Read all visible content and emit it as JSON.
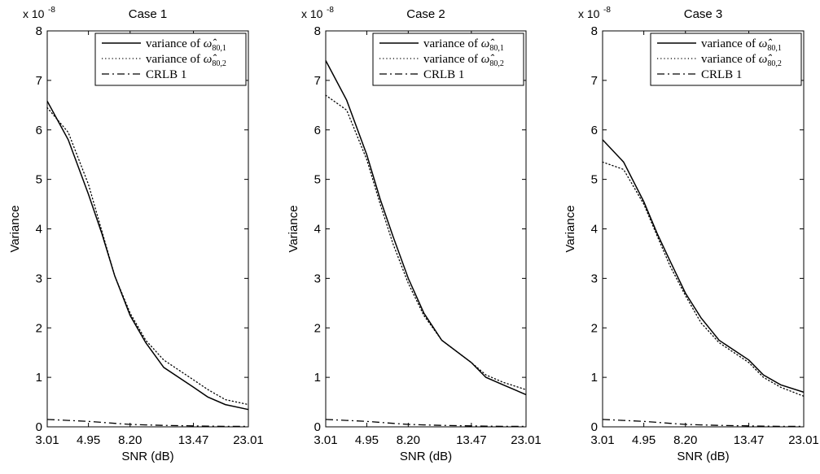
{
  "chart_data": [
    {
      "type": "line",
      "title": "Case 1",
      "xlabel": "SNR (dB)",
      "ylabel": "Variance",
      "y_multiplier": "x 10",
      "y_exponent": "-8",
      "xlim": [
        3.01,
        23.01
      ],
      "ylim": [
        0,
        8
      ],
      "xtick_labels": [
        "3.01",
        "4.95",
        "8.20",
        "13.47",
        "23.01"
      ],
      "ytick_labels": [
        "0",
        "1",
        "2",
        "3",
        "4",
        "5",
        "6",
        "7",
        "8"
      ],
      "x": [
        3.01,
        4.0,
        4.95,
        6.0,
        7.0,
        8.2,
        9.5,
        11.0,
        13.47,
        16.0,
        19.0,
        23.01
      ],
      "legend": {
        "position": "top-right",
        "entries": [
          {
            "text": "variance of ",
            "math": "ω̂",
            "sub": "80,1",
            "style": "solid"
          },
          {
            "text": "variance of ",
            "math": "ω̂",
            "sub": "80,2",
            "style": "dotted"
          },
          {
            "text": "CRLB 1",
            "math": "",
            "sub": "",
            "style": "dashdot"
          }
        ]
      },
      "series": [
        {
          "style": "solid",
          "values": [
            6.58,
            5.8,
            4.7,
            3.9,
            3.05,
            2.25,
            1.7,
            1.2,
            0.8,
            0.6,
            0.45,
            0.35
          ]
        },
        {
          "style": "dotted",
          "values": [
            6.45,
            5.95,
            4.9,
            3.95,
            3.05,
            2.3,
            1.75,
            1.35,
            0.95,
            0.75,
            0.55,
            0.45
          ]
        },
        {
          "style": "dashdot",
          "values": [
            0.15,
            0.13,
            0.11,
            0.09,
            0.07,
            0.05,
            0.04,
            0.03,
            0.02,
            0.015,
            0.01,
            0.01
          ]
        }
      ],
      "grid": false
    },
    {
      "type": "line",
      "title": "Case 2",
      "xlabel": "SNR (dB)",
      "ylabel": "Variance",
      "y_multiplier": "x 10",
      "y_exponent": "-8",
      "xlim": [
        3.01,
        23.01
      ],
      "ylim": [
        0,
        8
      ],
      "xtick_labels": [
        "3.01",
        "4.95",
        "8.20",
        "13.47",
        "23.01"
      ],
      "ytick_labels": [
        "0",
        "1",
        "2",
        "3",
        "4",
        "5",
        "6",
        "7",
        "8"
      ],
      "x": [
        3.01,
        4.0,
        4.95,
        6.0,
        7.0,
        8.2,
        9.5,
        11.0,
        13.47,
        16.0,
        19.0,
        23.01
      ],
      "legend": {
        "position": "top-right",
        "entries": [
          {
            "text": "variance of ",
            "math": "ω̂",
            "sub": "80,1",
            "style": "solid"
          },
          {
            "text": "variance of ",
            "math": "ω̂",
            "sub": "80,2",
            "style": "dotted"
          },
          {
            "text": "CRLB 1",
            "math": "",
            "sub": "",
            "style": "dashdot"
          }
        ]
      },
      "series": [
        {
          "style": "solid",
          "values": [
            7.4,
            6.6,
            5.5,
            4.6,
            3.85,
            3.0,
            2.3,
            1.75,
            1.3,
            1.0,
            0.85,
            0.65
          ]
        },
        {
          "style": "dotted",
          "values": [
            6.7,
            6.4,
            5.4,
            4.5,
            3.7,
            2.9,
            2.25,
            1.75,
            1.3,
            1.05,
            0.9,
            0.75
          ]
        },
        {
          "style": "dashdot",
          "values": [
            0.15,
            0.13,
            0.11,
            0.09,
            0.07,
            0.05,
            0.04,
            0.03,
            0.02,
            0.015,
            0.01,
            0.01
          ]
        }
      ],
      "grid": false
    },
    {
      "type": "line",
      "title": "Case 3",
      "xlabel": "SNR (dB)",
      "ylabel": "Variance",
      "y_multiplier": "x 10",
      "y_exponent": "-8",
      "xlim": [
        3.01,
        23.01
      ],
      "ylim": [
        0,
        8
      ],
      "xtick_labels": [
        "3.01",
        "4.95",
        "8.20",
        "13.47",
        "23.01"
      ],
      "ytick_labels": [
        "0",
        "1",
        "2",
        "3",
        "4",
        "5",
        "6",
        "7",
        "8"
      ],
      "x": [
        3.01,
        4.0,
        4.95,
        6.0,
        7.0,
        8.2,
        9.5,
        11.0,
        13.47,
        16.0,
        19.0,
        23.01
      ],
      "legend": {
        "position": "top-right",
        "entries": [
          {
            "text": "variance of ",
            "math": "ω̂",
            "sub": "80,1",
            "style": "solid"
          },
          {
            "text": "variance of ",
            "math": "ω̂",
            "sub": "80,2",
            "style": "dotted"
          },
          {
            "text": "CRLB 1",
            "math": "",
            "sub": "",
            "style": "dashdot"
          }
        ]
      },
      "series": [
        {
          "style": "solid",
          "values": [
            5.8,
            5.35,
            4.55,
            3.9,
            3.35,
            2.7,
            2.2,
            1.75,
            1.35,
            1.05,
            0.85,
            0.7
          ]
        },
        {
          "style": "dotted",
          "values": [
            5.35,
            5.2,
            4.5,
            3.85,
            3.25,
            2.65,
            2.1,
            1.7,
            1.3,
            1.0,
            0.8,
            0.62
          ]
        },
        {
          "style": "dashdot",
          "values": [
            0.15,
            0.13,
            0.11,
            0.09,
            0.07,
            0.05,
            0.04,
            0.03,
            0.02,
            0.015,
            0.01,
            0.01
          ]
        }
      ],
      "grid": false
    }
  ]
}
